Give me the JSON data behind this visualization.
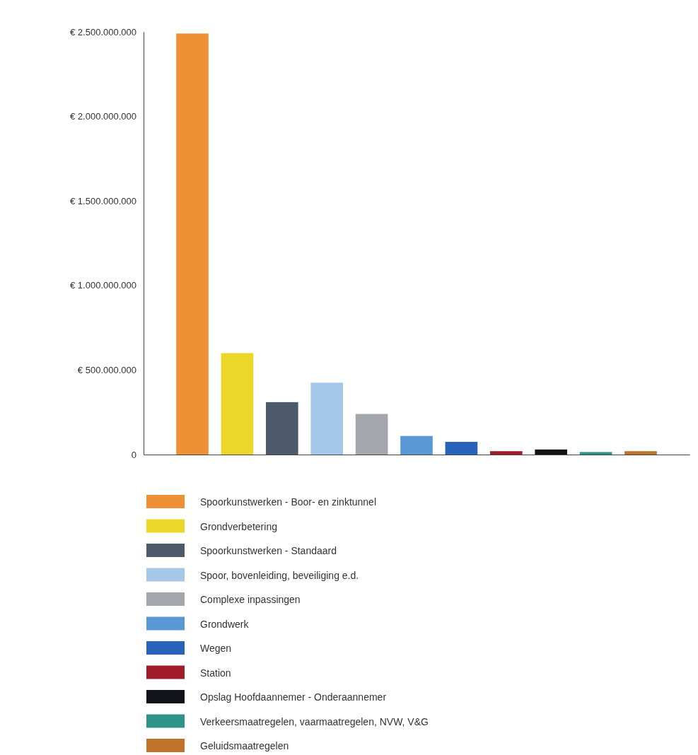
{
  "chart_data": {
    "type": "bar",
    "categories": [
      null
    ],
    "series": [
      {
        "name": "Spoorkunstwerken - Boor- en zinktunnel",
        "color": "#ef9036",
        "values": [
          2490000000
        ]
      },
      {
        "name": "Grondverbetering",
        "color": "#ecd62a",
        "values": [
          600000000
        ]
      },
      {
        "name": "Spoorkunstwerken - Standaard",
        "color": "#4d5a6c",
        "values": [
          310000000
        ]
      },
      {
        "name": "Spoor, bovenleiding, beveiliging e.d.",
        "color": "#a5c8e8",
        "values": [
          425000000
        ]
      },
      {
        "name": "Complexe inpassingen",
        "color": "#a3a7ad",
        "values": [
          240000000
        ]
      },
      {
        "name": "Grondwerk",
        "color": "#5a97d6",
        "values": [
          110000000
        ]
      },
      {
        "name": "Wegen",
        "color": "#2762bb",
        "values": [
          75000000
        ]
      },
      {
        "name": "Station",
        "color": "#a11c2a",
        "values": [
          20000000
        ]
      },
      {
        "name": "Opslag Hoofdaannemer - Onderaannemer",
        "color": "#111318",
        "values": [
          30000000
        ]
      },
      {
        "name": "Verkeersmaatregelen, vaarmaatregelen, NVW, V&G",
        "color": "#2e9488",
        "values": [
          15000000
        ]
      },
      {
        "name": "Geluidsmaatregelen",
        "color": "#c0712a",
        "values": [
          20000000
        ]
      }
    ],
    "ylim": [
      0,
      2500000000
    ],
    "yticks": [
      {
        "value": 0,
        "label": "0"
      },
      {
        "value": 500000000,
        "label": "€ 500.000.000"
      },
      {
        "value": 1000000000,
        "label": "€ 1.000.000.000"
      },
      {
        "value": 1500000000,
        "label": "€ 1.500.000.000"
      },
      {
        "value": 2000000000,
        "label": "€ 2.000.000.000"
      },
      {
        "value": 2500000000,
        "label": "€ 2.500.000.000"
      }
    ],
    "tick_labels": "y",
    "grid": false,
    "legend": "bottom"
  }
}
